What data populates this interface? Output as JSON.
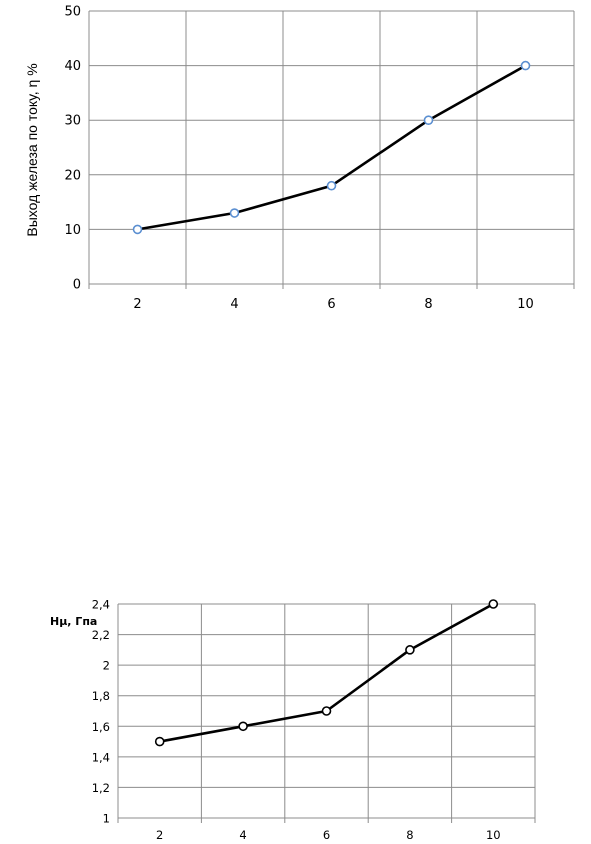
{
  "chart_data": [
    {
      "type": "line",
      "title": "",
      "xlabel": "",
      "ylabel": "Выход железа по току, η %",
      "x": [
        "2",
        "4",
        "6",
        "8",
        "10"
      ],
      "ylim": [
        0,
        50
      ],
      "y_ticks": [
        "0",
        "10",
        "20",
        "30",
        "40",
        "50"
      ],
      "grid": true,
      "series": [
        {
          "values": [
            10,
            13,
            18,
            30,
            40
          ],
          "line_color": "#000000",
          "marker_edge": "#5b8fd1"
        }
      ]
    },
    {
      "type": "line",
      "title": "",
      "xlabel": "",
      "ylabel": "Hμ, Гпа",
      "x": [
        "2",
        "4",
        "6",
        "8",
        "10"
      ],
      "ylim": [
        1,
        2.4
      ],
      "y_ticks": [
        "1",
        "1,2",
        "1,4",
        "1,6",
        "1,8",
        "2",
        "2,2",
        "2,4"
      ],
      "grid": true,
      "series": [
        {
          "values": [
            1.5,
            1.6,
            1.7,
            2.1,
            2.4
          ],
          "line_color": "#000000",
          "marker_edge": "#000000"
        }
      ]
    }
  ]
}
